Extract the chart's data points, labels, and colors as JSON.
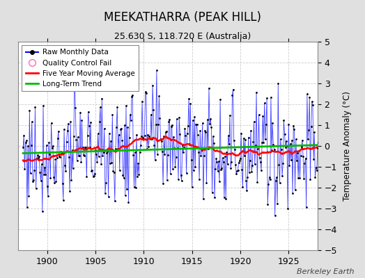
{
  "title": "MEEKATHARRA (PEAK HILL)",
  "subtitle": "25.630 S, 118.720 E (Australia)",
  "ylabel": "Temperature Anomaly (°C)",
  "credit": "Berkeley Earth",
  "xlim": [
    1897.0,
    1928.0
  ],
  "ylim": [
    -5,
    5
  ],
  "yticks": [
    -5,
    -4,
    -3,
    -2,
    -1,
    0,
    1,
    2,
    3,
    4,
    5
  ],
  "xticks": [
    1900,
    1905,
    1910,
    1915,
    1920,
    1925
  ],
  "bg_color": "#e0e0e0",
  "plot_bg_color": "#ffffff",
  "line_color": "#0000ff",
  "dot_color": "#000000",
  "ma_color": "#ff0000",
  "trend_color": "#00bb00",
  "grid_color": "#cccccc"
}
